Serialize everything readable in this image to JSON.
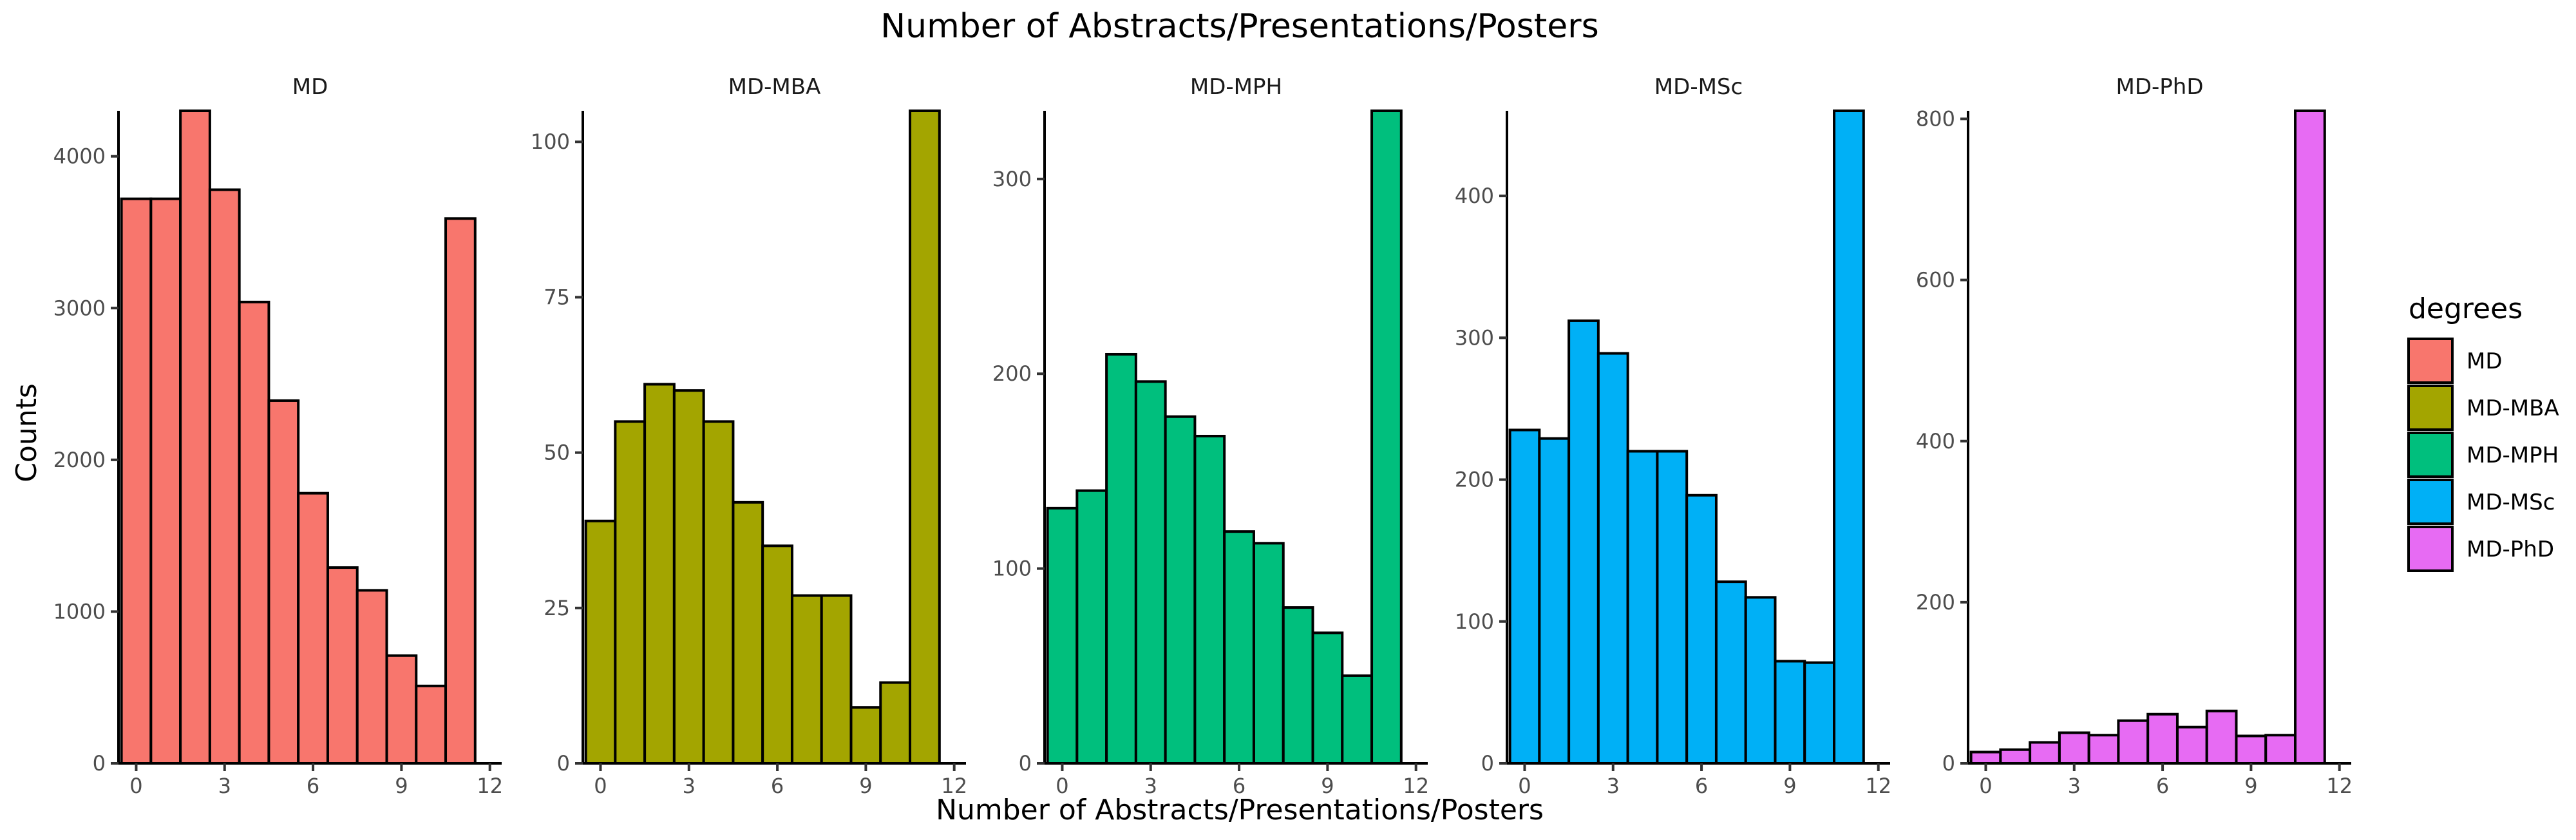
{
  "chart_data": {
    "type": "bar",
    "title": "Number of Abstracts/Presentations/Posters",
    "xlabel": "Number of Abstracts/Presentations/Posters",
    "ylabel": "Counts",
    "x_ticks": [
      "0",
      "3",
      "6",
      "9",
      "12"
    ],
    "x_values": [
      0,
      1,
      2,
      3,
      4,
      5,
      6,
      7,
      8,
      9,
      10,
      11
    ],
    "xlim": [
      -0.6,
      12.4
    ],
    "legend": {
      "title": "degrees",
      "placement": "right"
    },
    "grid": false,
    "panels": [
      {
        "name": "MD",
        "color": "#F8766D",
        "values": [
          3720,
          3720,
          4300,
          3780,
          3040,
          2390,
          1780,
          1290,
          1140,
          710,
          510,
          3590
        ],
        "ylim": [
          0,
          4300
        ],
        "y_ticks": [
          0,
          1000,
          2000,
          3000,
          4000
        ]
      },
      {
        "name": "MD-MBA",
        "color": "#A3A500",
        "values": [
          39,
          55,
          61,
          60,
          55,
          42,
          35,
          27,
          27,
          9,
          13,
          105
        ],
        "ylim": [
          0,
          105
        ],
        "y_ticks": [
          0,
          25,
          50,
          75,
          100
        ]
      },
      {
        "name": "MD-MPH",
        "color": "#00BF7D",
        "values": [
          131,
          140,
          210,
          196,
          178,
          168,
          119,
          113,
          80,
          67,
          45,
          335
        ],
        "ylim": [
          0,
          335
        ],
        "y_ticks": [
          0,
          100,
          200,
          300
        ]
      },
      {
        "name": "MD-MSc",
        "color": "#00B0F6",
        "values": [
          235,
          229,
          312,
          289,
          220,
          220,
          189,
          128,
          117,
          72,
          71,
          460
        ],
        "ylim": [
          0,
          460
        ],
        "y_ticks": [
          0,
          100,
          200,
          300,
          400
        ]
      },
      {
        "name": "MD-PhD",
        "color": "#E76BF3",
        "values": [
          14,
          17,
          26,
          38,
          35,
          53,
          61,
          45,
          65,
          34,
          35,
          810
        ],
        "ylim": [
          0,
          810
        ],
        "y_ticks": [
          0,
          200,
          400,
          600,
          800
        ]
      }
    ]
  }
}
